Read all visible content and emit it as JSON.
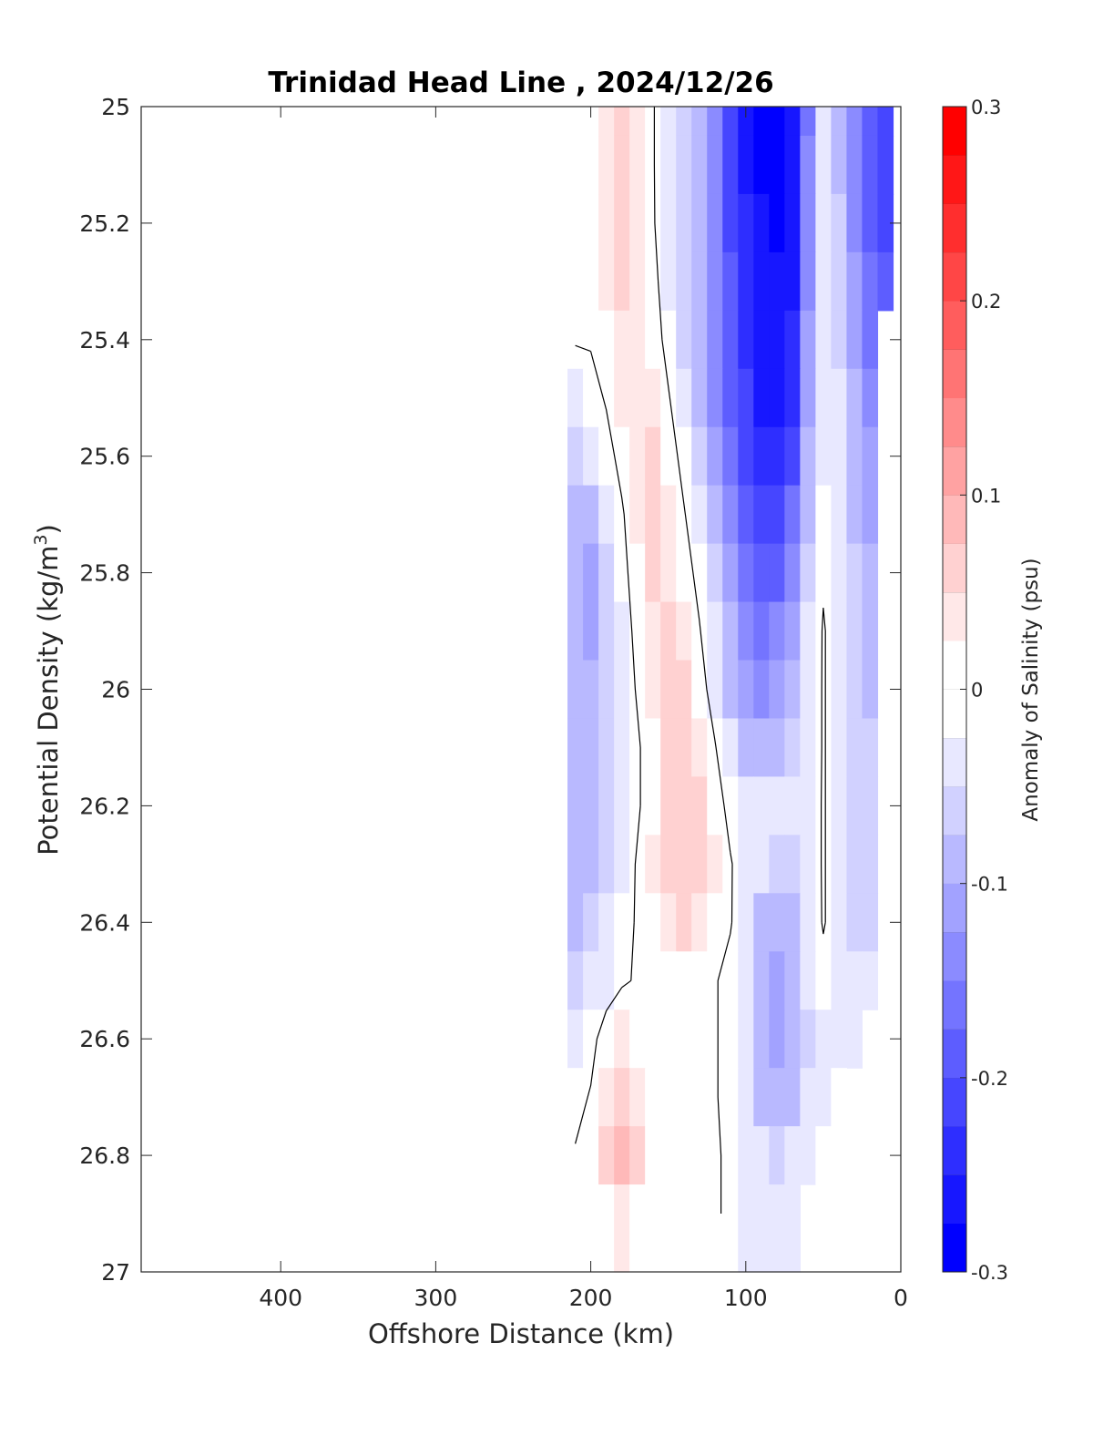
{
  "chart_data": {
    "type": "heatmap",
    "title": "Trinidad Head Line , 2024/12/26",
    "xlabel": "Offshore Distance (km)",
    "ylabel": "Potential Density (kg/m",
    "ylabel_sup": "3",
    "ylabel_close": ")",
    "colorbar_label": "Anomaly of Salinity (psu)",
    "xlim": [
      490,
      0
    ],
    "ylim": [
      25,
      27
    ],
    "x_reversed": true,
    "y_reversed": true,
    "x_ticks": [
      400,
      300,
      200,
      100,
      0
    ],
    "x_tick_labels": [
      "400",
      "300",
      "200",
      "100",
      "0"
    ],
    "y_ticks": [
      25,
      25.2,
      25.4,
      25.6,
      25.8,
      26,
      26.2,
      26.4,
      26.6,
      26.8,
      27
    ],
    "y_tick_labels": [
      "25",
      "25.2",
      "25.4",
      "25.6",
      "25.8",
      "26",
      "26.2",
      "26.4",
      "26.6",
      "26.8",
      "27"
    ],
    "colorbar_limits": [
      -0.3,
      0.3
    ],
    "colorbar_ticks": [
      0.3,
      0.2,
      0.1,
      0,
      -0.1,
      -0.2,
      -0.3
    ],
    "colorbar_tick_labels": [
      "0.3",
      "0.2",
      "0.1",
      "0",
      "-0.1",
      "-0.2",
      "-0.3"
    ],
    "colorbar_steps": 24,
    "colors": {
      "positive": "#ff0000",
      "negative": "#0000ff",
      "neutral": "#ffffff",
      "contour": "#000000"
    },
    "x": [
      210,
      200,
      190,
      180,
      170,
      160,
      150,
      140,
      130,
      120,
      110,
      100,
      90,
      80,
      70,
      60,
      50,
      40,
      30,
      20,
      10
    ],
    "y": [
      25.0,
      25.1,
      25.2,
      25.3,
      25.4,
      25.5,
      25.6,
      25.7,
      25.8,
      25.9,
      26.0,
      26.1,
      26.2,
      26.3,
      26.4,
      26.5,
      26.6,
      26.7,
      26.8,
      26.9
    ],
    "z": [
      [
        null,
        null,
        0.04,
        0.06,
        0.03,
        0.0,
        -0.04,
        -0.07,
        -0.1,
        -0.14,
        -0.2,
        -0.26,
        -0.28,
        -0.28,
        -0.27,
        -0.16,
        -0.05,
        -0.09,
        -0.14,
        -0.18,
        -0.2
      ],
      [
        null,
        null,
        0.04,
        0.07,
        0.04,
        0.0,
        -0.04,
        -0.07,
        -0.1,
        -0.15,
        -0.2,
        -0.25,
        -0.28,
        -0.28,
        -0.27,
        -0.15,
        -0.04,
        -0.08,
        -0.14,
        -0.18,
        -0.2
      ],
      [
        null,
        null,
        0.04,
        0.07,
        0.04,
        0.0,
        -0.03,
        -0.06,
        -0.1,
        -0.15,
        -0.2,
        -0.24,
        -0.27,
        -0.28,
        -0.26,
        -0.14,
        -0.03,
        -0.07,
        -0.13,
        -0.18,
        -0.2
      ],
      [
        0.0,
        0.01,
        0.03,
        0.05,
        0.04,
        0.01,
        -0.03,
        -0.06,
        -0.1,
        -0.14,
        -0.19,
        -0.23,
        -0.26,
        -0.27,
        -0.25,
        -0.13,
        -0.03,
        -0.06,
        -0.12,
        -0.17,
        -0.19
      ],
      [
        0.0,
        0.0,
        0.02,
        0.04,
        0.04,
        0.02,
        -0.02,
        -0.06,
        -0.09,
        -0.14,
        -0.19,
        -0.23,
        -0.26,
        -0.27,
        -0.24,
        -0.12,
        -0.03,
        -0.06,
        -0.11,
        -0.16,
        null
      ],
      [
        -0.04,
        -0.02,
        0.0,
        0.03,
        0.04,
        0.03,
        0.0,
        -0.04,
        -0.08,
        -0.13,
        -0.18,
        -0.22,
        -0.25,
        -0.26,
        -0.23,
        -0.11,
        -0.03,
        -0.05,
        -0.1,
        -0.14,
        null
      ],
      [
        -0.06,
        -0.05,
        -0.02,
        0.01,
        0.04,
        0.05,
        0.02,
        -0.02,
        -0.06,
        -0.11,
        -0.16,
        -0.2,
        -0.23,
        -0.24,
        -0.2,
        -0.1,
        -0.03,
        -0.05,
        -0.09,
        -0.12,
        null
      ],
      [
        -0.09,
        -0.09,
        -0.05,
        -0.01,
        0.03,
        0.05,
        0.03,
        0.0,
        -0.04,
        -0.09,
        -0.14,
        -0.18,
        -0.21,
        -0.21,
        -0.17,
        -0.08,
        -0.02,
        -0.04,
        -0.08,
        -0.11,
        null
      ],
      [
        -0.1,
        -0.11,
        -0.07,
        -0.02,
        0.02,
        0.05,
        0.04,
        0.02,
        -0.02,
        -0.07,
        -0.12,
        -0.16,
        -0.19,
        -0.19,
        -0.14,
        -0.06,
        -0.01,
        -0.04,
        -0.07,
        -0.1,
        null
      ],
      [
        -0.1,
        -0.11,
        -0.07,
        -0.03,
        0.01,
        0.04,
        0.05,
        0.03,
        0.0,
        -0.05,
        -0.1,
        -0.14,
        -0.16,
        -0.15,
        -0.11,
        -0.05,
        0.0,
        -0.03,
        -0.07,
        -0.09,
        null
      ],
      [
        -0.1,
        -0.1,
        -0.07,
        -0.03,
        0.0,
        0.03,
        0.05,
        0.05,
        0.02,
        -0.03,
        -0.08,
        -0.12,
        -0.13,
        -0.12,
        -0.09,
        -0.04,
        0.0,
        -0.03,
        -0.06,
        -0.08,
        null
      ],
      [
        -0.09,
        -0.09,
        -0.07,
        -0.04,
        -0.01,
        0.02,
        0.05,
        0.06,
        0.04,
        0.0,
        -0.05,
        -0.08,
        -0.09,
        -0.08,
        -0.07,
        -0.04,
        0.0,
        -0.03,
        -0.06,
        -0.07,
        null
      ],
      [
        -0.08,
        -0.08,
        -0.07,
        -0.04,
        -0.01,
        0.02,
        0.05,
        0.06,
        0.05,
        0.02,
        -0.02,
        -0.04,
        -0.05,
        -0.05,
        -0.05,
        -0.03,
        0.0,
        -0.03,
        -0.06,
        -0.07,
        null
      ],
      [
        -0.1,
        -0.08,
        -0.06,
        -0.03,
        0.0,
        0.03,
        0.06,
        0.06,
        0.05,
        0.03,
        0.0,
        -0.03,
        -0.05,
        -0.06,
        -0.06,
        -0.03,
        0.0,
        -0.03,
        -0.06,
        -0.07,
        null
      ],
      [
        -0.1,
        -0.07,
        -0.05,
        -0.02,
        0.0,
        0.02,
        0.04,
        0.05,
        0.04,
        0.02,
        0.0,
        -0.04,
        -0.08,
        -0.09,
        -0.08,
        -0.04,
        0.0,
        -0.03,
        -0.06,
        -0.06,
        null
      ],
      [
        -0.07,
        -0.05,
        -0.03,
        -0.01,
        0.0,
        0.01,
        0.01,
        0.01,
        0.0,
        0.0,
        -0.02,
        -0.05,
        -0.09,
        -0.11,
        -0.1,
        -0.05,
        -0.02,
        -0.03,
        -0.05,
        -0.05,
        null
      ],
      [
        -0.04,
        -0.02,
        0.02,
        0.04,
        0.02,
        0.0,
        0.0,
        0.0,
        0.0,
        0.0,
        -0.02,
        -0.05,
        -0.09,
        -0.12,
        -0.1,
        -0.06,
        -0.03,
        -0.03,
        -0.04,
        null,
        null
      ],
      [
        -0.02,
        0.0,
        0.04,
        0.06,
        0.04,
        0.0,
        0.0,
        0.0,
        0.0,
        0.0,
        -0.02,
        -0.05,
        -0.08,
        -0.09,
        -0.08,
        -0.05,
        -0.03,
        -0.02,
        null,
        null,
        null
      ],
      [
        0.0,
        0.02,
        0.05,
        0.08,
        0.05,
        0.01,
        0.0,
        0.0,
        0.0,
        0.0,
        -0.01,
        -0.04,
        -0.05,
        -0.06,
        -0.05,
        -0.03,
        -0.01,
        null,
        null,
        null,
        null
      ],
      [
        0.0,
        0.0,
        0.02,
        0.03,
        0.02,
        0.0,
        0.0,
        0.0,
        0.0,
        0.0,
        -0.01,
        -0.03,
        -0.04,
        -0.04,
        -0.03,
        null,
        null,
        null,
        null,
        null,
        null
      ]
    ]
  }
}
